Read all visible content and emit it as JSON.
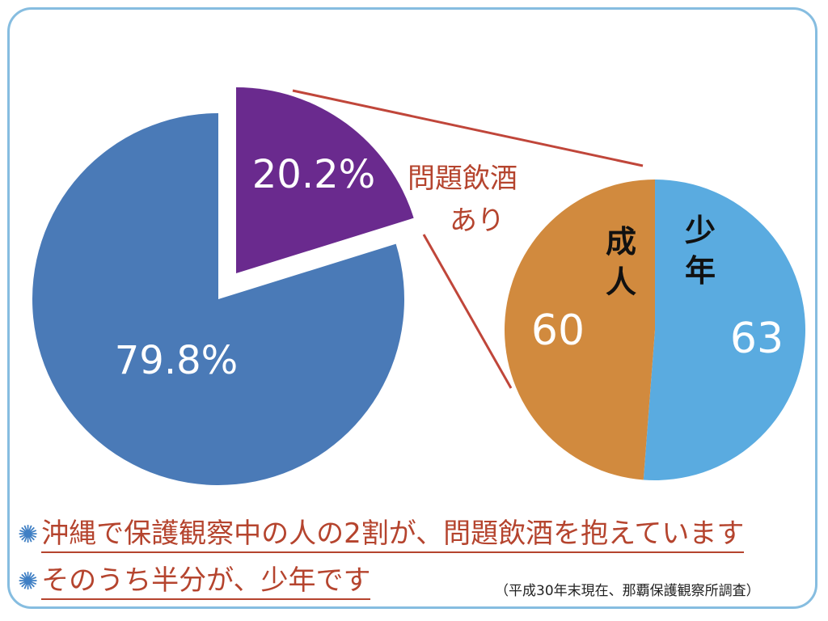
{
  "chart_data": [
    {
      "type": "pie",
      "slices": [
        {
          "label": "79.8%",
          "value": 79.8,
          "color": "#4a7ab7"
        },
        {
          "label": "20.2%",
          "value": 20.2,
          "color": "#6a2a8e",
          "exploded": true
        }
      ],
      "annotation": [
        "問題飲酒",
        "あり"
      ]
    },
    {
      "type": "pie",
      "slices": [
        {
          "name": "少年",
          "label": "63",
          "value": 63,
          "color": "#5aabe0"
        },
        {
          "name": "成人",
          "label": "60",
          "value": 60,
          "color": "#d18a3e"
        }
      ]
    }
  ],
  "bullets": [
    "沖縄で保護観察中の人の2割が、問題飲酒を抱えています",
    "そのうち半分が、少年です"
  ],
  "bullet_icon": "asterisk-icon",
  "source": "（平成30年末現在、那覇保護観察所調査）"
}
